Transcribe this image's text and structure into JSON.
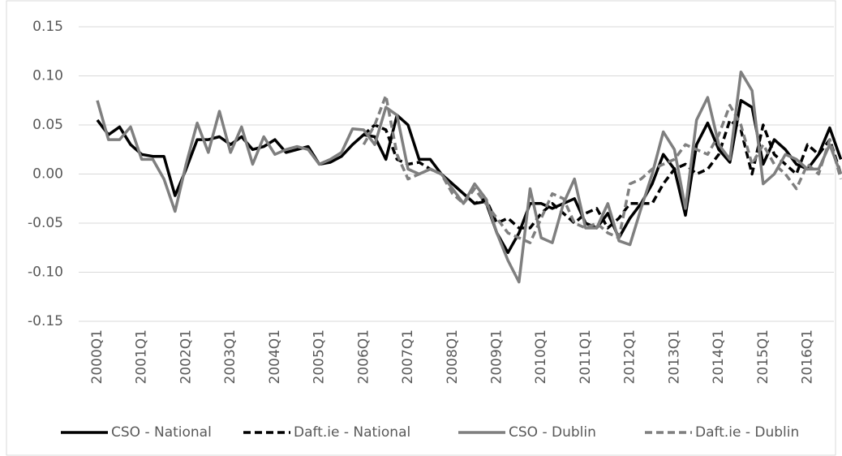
{
  "chart_data": {
    "type": "line",
    "categories": [
      "2000Q1",
      null,
      null,
      null,
      "2001Q1",
      null,
      null,
      null,
      "2002Q1",
      null,
      null,
      null,
      "2003Q1",
      null,
      null,
      null,
      "2004Q1",
      null,
      null,
      null,
      "2005Q1",
      null,
      null,
      null,
      "2006Q1",
      null,
      null,
      null,
      "2007Q1",
      null,
      null,
      null,
      "2008Q1",
      null,
      null,
      null,
      "2009Q1",
      null,
      null,
      null,
      "2010Q1",
      null,
      null,
      null,
      "2011Q1",
      null,
      null,
      null,
      "2012Q1",
      null,
      null,
      null,
      "2013Q1",
      null,
      null,
      null,
      "2014Q1",
      null,
      null,
      null,
      "2015Q1",
      null,
      null,
      null,
      "2016Q1",
      null,
      null,
      null
    ],
    "series": [
      {
        "name": "CSO - National",
        "color": "#000000",
        "style": "solid",
        "values": [
          0.055,
          0.04,
          0.048,
          0.03,
          0.02,
          0.018,
          0.018,
          -0.022,
          0.005,
          0.035,
          0.035,
          0.038,
          0.03,
          0.038,
          0.025,
          0.028,
          0.035,
          0.022,
          0.025,
          0.028,
          0.01,
          0.012,
          0.018,
          0.03,
          0.04,
          0.038,
          0.015,
          0.06,
          0.05,
          0.015,
          0.015,
          0.0,
          -0.01,
          -0.02,
          -0.03,
          -0.028,
          -0.06,
          -0.08,
          -0.06,
          -0.03,
          -0.03,
          -0.035,
          -0.03,
          -0.025,
          -0.05,
          -0.055,
          -0.04,
          -0.065,
          -0.045,
          -0.03,
          -0.01,
          0.02,
          0.005,
          -0.042,
          0.03,
          0.052,
          0.025,
          0.012,
          0.075,
          0.068,
          0.01,
          0.035,
          0.025,
          0.01,
          0.005,
          0.02,
          0.047,
          0.015
        ]
      },
      {
        "name": "Daft.ie - National",
        "color": "#000000",
        "style": "dashed",
        "values": [
          null,
          null,
          null,
          null,
          null,
          null,
          null,
          null,
          null,
          null,
          null,
          null,
          null,
          null,
          null,
          null,
          null,
          null,
          null,
          null,
          null,
          null,
          null,
          null,
          0.04,
          0.05,
          0.045,
          0.015,
          0.01,
          0.012,
          0.005,
          0.0,
          -0.01,
          -0.02,
          -0.03,
          -0.025,
          -0.05,
          -0.045,
          -0.055,
          -0.055,
          -0.04,
          -0.03,
          -0.04,
          -0.05,
          -0.04,
          -0.035,
          -0.055,
          -0.045,
          -0.03,
          -0.03,
          -0.03,
          -0.01,
          0.005,
          0.01,
          0.0,
          0.005,
          0.02,
          0.055,
          0.045,
          0.0,
          0.05,
          0.02,
          0.01,
          0.0,
          0.03,
          0.02,
          0.035,
          0.0
        ]
      },
      {
        "name": "CSO - Dublin",
        "color": "#7f7f7f",
        "style": "solid",
        "values": [
          0.075,
          0.035,
          0.035,
          0.048,
          0.015,
          0.015,
          -0.005,
          -0.038,
          0.01,
          0.052,
          0.022,
          0.064,
          0.022,
          0.048,
          0.01,
          0.038,
          0.02,
          0.025,
          0.028,
          0.025,
          0.01,
          0.015,
          0.022,
          0.046,
          0.045,
          0.03,
          0.068,
          0.06,
          0.005,
          0.0,
          0.005,
          0.0,
          -0.015,
          -0.03,
          -0.01,
          -0.025,
          -0.06,
          -0.088,
          -0.11,
          -0.015,
          -0.065,
          -0.07,
          -0.03,
          -0.005,
          -0.055,
          -0.055,
          -0.03,
          -0.068,
          -0.072,
          -0.035,
          0.0,
          0.043,
          0.025,
          -0.035,
          0.055,
          0.078,
          0.03,
          0.015,
          0.104,
          0.085,
          -0.01,
          0.0,
          0.02,
          0.015,
          0.005,
          0.005,
          0.03,
          0.0
        ]
      },
      {
        "name": "Daft.ie - Dublin",
        "color": "#7f7f7f",
        "style": "dashed",
        "values": [
          null,
          null,
          null,
          null,
          null,
          null,
          null,
          null,
          null,
          null,
          null,
          null,
          null,
          null,
          null,
          null,
          null,
          null,
          null,
          null,
          null,
          null,
          null,
          null,
          0.03,
          0.05,
          0.08,
          0.02,
          -0.005,
          0.0,
          0.005,
          0.0,
          -0.02,
          -0.03,
          -0.015,
          -0.03,
          -0.045,
          -0.06,
          -0.065,
          -0.07,
          -0.045,
          -0.02,
          -0.025,
          -0.05,
          -0.055,
          -0.05,
          -0.06,
          -0.065,
          -0.01,
          -0.005,
          0.005,
          0.01,
          0.015,
          0.03,
          0.025,
          0.02,
          0.04,
          0.07,
          0.05,
          0.01,
          0.03,
          0.01,
          0.0,
          -0.015,
          0.01,
          0.0,
          0.035,
          -0.005
        ]
      }
    ],
    "ylim": [
      -0.15,
      0.15
    ],
    "yticks": [
      -0.15,
      {
        "value": -0.1,
        "label": "-0.10"
      },
      -0.05,
      {
        "value": 0,
        "label": "0.00"
      },
      0.05,
      {
        "value": 0.1,
        "label": "0.10"
      },
      0.15
    ],
    "grid": true,
    "legend": "bottom"
  }
}
